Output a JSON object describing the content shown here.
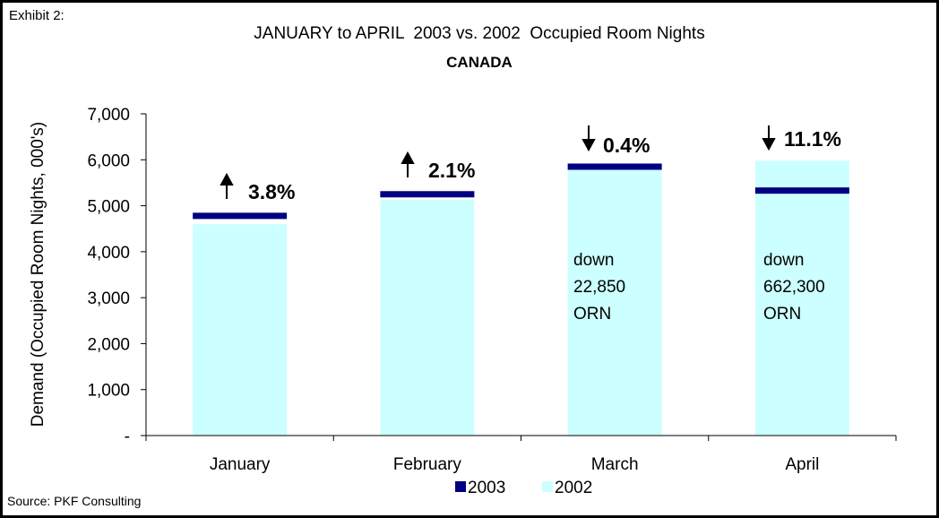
{
  "chart_data": {
    "type": "bar",
    "exhibit": "Exhibit 2:",
    "title": "JANUARY to APRIL  2003 vs. 2002  Occupied Room Nights",
    "subtitle": "CANADA",
    "y_label": "Demand (Occupied Room Nights, 000's)",
    "source": "Source: PKF Consulting",
    "categories": [
      "January",
      "February",
      "March",
      "April"
    ],
    "series": [
      {
        "name": "2003",
        "color": "#000080",
        "values": [
          4770,
          5240,
          5840,
          5320
        ]
      },
      {
        "name": "2002",
        "color": "#ccffff",
        "values": [
          4600,
          5130,
          5863,
          5980
        ]
      }
    ],
    "ylim": [
      0,
      7000
    ],
    "yticks": [
      {
        "value": 0,
        "label": "-"
      },
      {
        "value": 1000,
        "label": "1,000"
      },
      {
        "value": 2000,
        "label": "2,000"
      },
      {
        "value": 3000,
        "label": "3,000"
      },
      {
        "value": 4000,
        "label": "4,000"
      },
      {
        "value": 5000,
        "label": "5,000"
      },
      {
        "value": 6000,
        "label": "6,000"
      },
      {
        "value": 7000,
        "label": "7,000"
      }
    ],
    "annotations": [
      "3.8%",
      "2.1%",
      "0.4%",
      "11.1%"
    ],
    "notes": [
      [
        "down",
        "22,850",
        "ORN"
      ],
      [
        "down",
        "662,300",
        "ORN"
      ]
    ]
  }
}
